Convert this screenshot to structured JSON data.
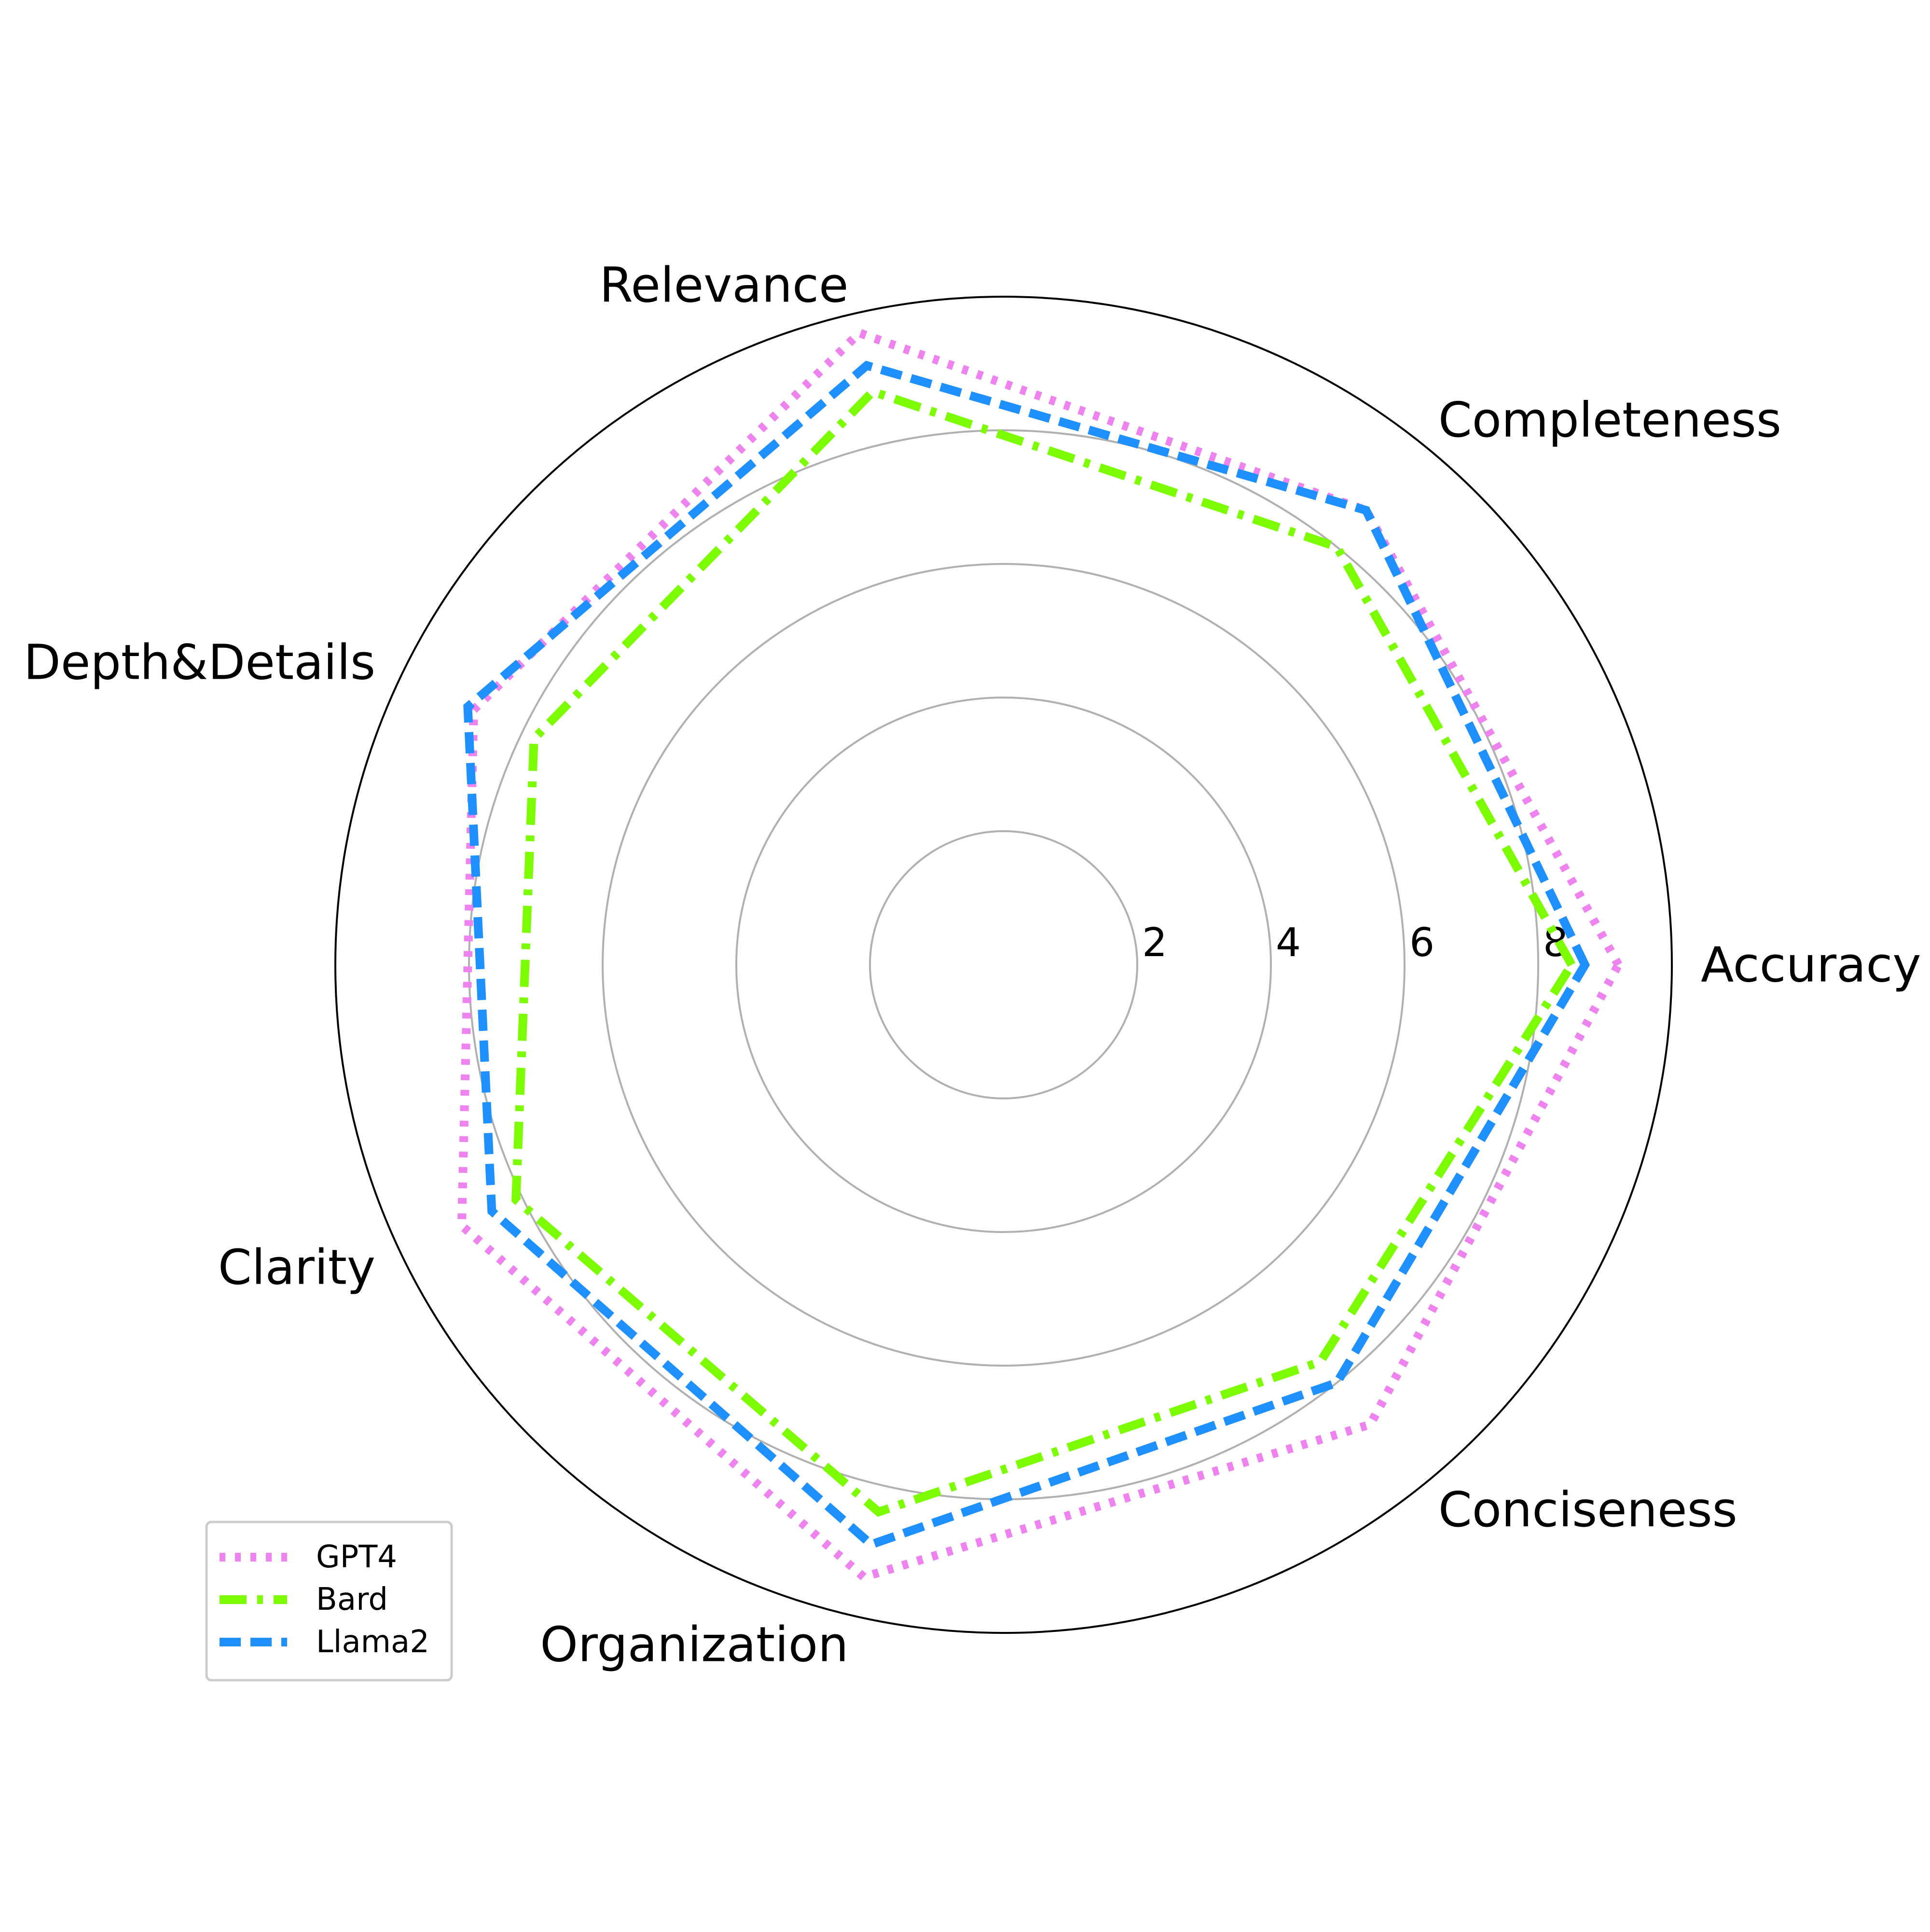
{
  "chart_data": {
    "type": "radar",
    "title": "",
    "categories": [
      "Accuracy",
      "Completeness",
      "Relevance",
      "Depth&Details",
      "Clarity",
      "Organization",
      "Conciseness"
    ],
    "rlim": [
      0,
      10
    ],
    "radial_ticks": [
      2,
      4,
      6,
      8
    ],
    "radial_tick_labels": [
      "2",
      "4",
      "6",
      "8"
    ],
    "grid": true,
    "legend_position": "lower-left",
    "series": [
      {
        "name": "GPT4",
        "values": [
          9.2,
          8.7,
          9.7,
          8.8,
          9.0,
          9.4,
          8.8
        ],
        "color": "#ee82ee",
        "linestyle": "dotted"
      },
      {
        "name": "Bard",
        "values": [
          8.5,
          8.0,
          8.8,
          7.8,
          8.1,
          8.4,
          7.6
        ],
        "color": "#7cfc00",
        "linestyle": "dashdot"
      },
      {
        "name": "Llama2",
        "values": [
          8.7,
          8.7,
          9.2,
          8.9,
          8.5,
          8.9,
          8.0
        ],
        "color": "#1e90ff",
        "linestyle": "dashed"
      }
    ]
  }
}
